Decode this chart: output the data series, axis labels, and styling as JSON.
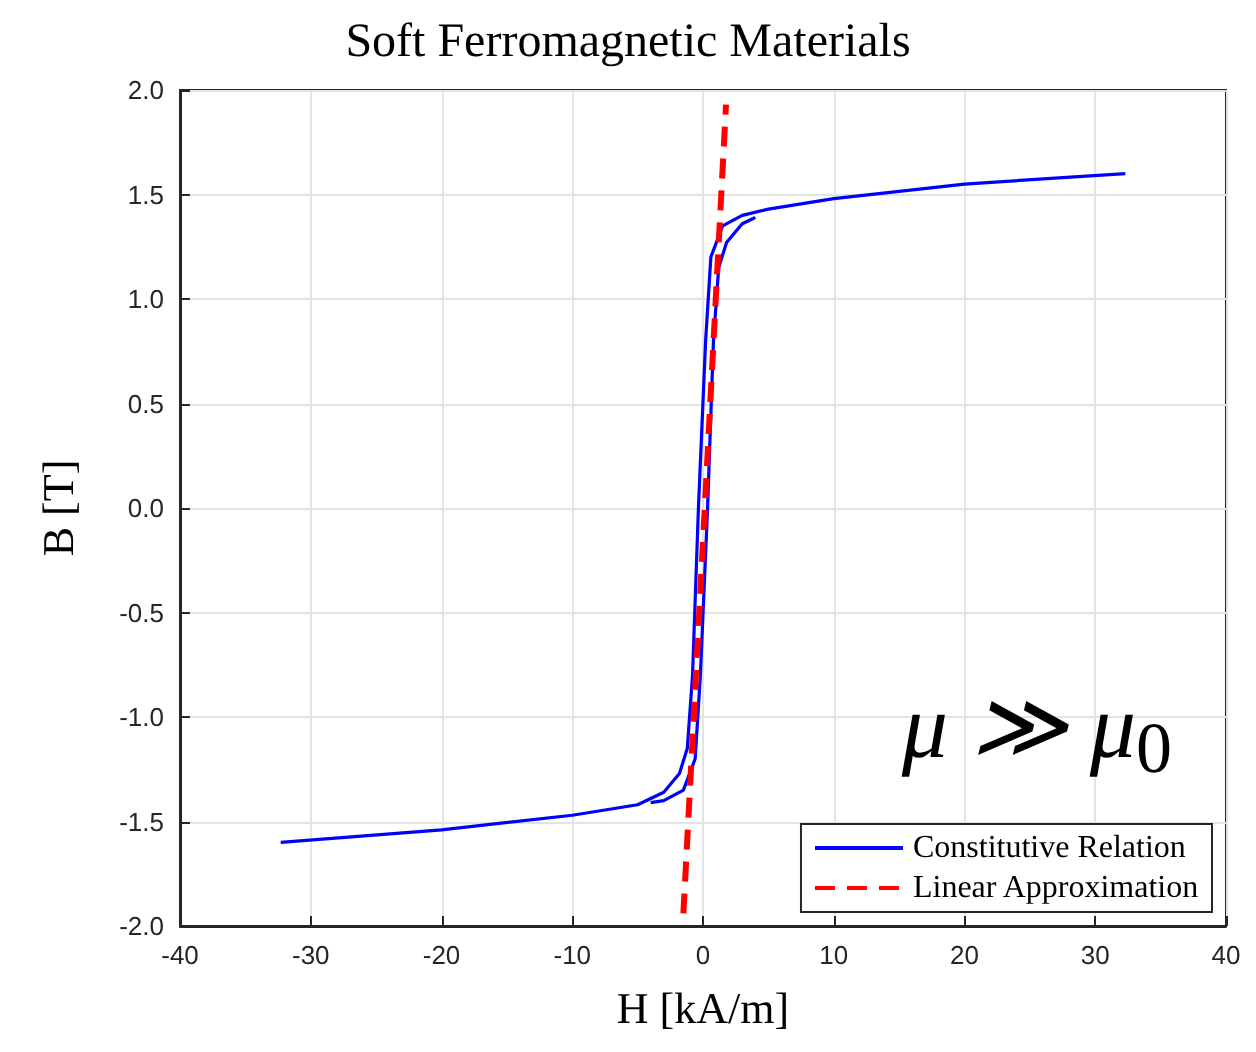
{
  "chart_data": {
    "type": "line",
    "title": "Soft Ferromagnetic Materials",
    "xlabel": "H [kA/m]",
    "ylabel": "B [T]",
    "annotations": [
      "μ ≫ μ$_{0}$"
    ],
    "series": [
      {
        "name": "Constitutive Relation",
        "color": "#0000ff",
        "line_style": "solid",
        "x": [
          32.3,
          20,
          10,
          5,
          3,
          1.5,
          0.6,
          0.2,
          -0.35,
          -0.8,
          -1.2,
          -1.8,
          -3,
          -5,
          -10,
          -20,
          -32.3
        ],
        "values": [
          1.6,
          1.55,
          1.48,
          1.43,
          1.4,
          1.35,
          1.2,
          0.8,
          0,
          -0.8,
          -1.15,
          -1.27,
          -1.36,
          -1.42,
          -1.47,
          -1.54,
          -1.6
        ]
      },
      {
        "color": "#0000ff",
        "line_style": "solid",
        "x": [
          -4,
          -3,
          -1.5,
          -0.6,
          -0.2,
          0.35,
          0.8,
          1.2,
          1.8,
          3,
          4
        ],
        "values": [
          -1.41,
          -1.4,
          -1.35,
          -1.2,
          -0.8,
          0,
          0.8,
          1.15,
          1.27,
          1.36,
          1.39
        ]
      },
      {
        "name": "Linear Approximation",
        "color": "#ff0000",
        "line_style": "dashed",
        "x": [
          -1.5,
          1.76
        ],
        "values": [
          -1.94,
          1.93
        ]
      }
    ],
    "xlim": [
      -40,
      40
    ],
    "xticks": [
      -40,
      -30,
      -20,
      -10,
      0,
      10,
      20,
      30,
      40
    ],
    "ylim": [
      -2,
      2
    ],
    "yticks": [
      {
        "value": -2,
        "label": "-2.0"
      },
      {
        "value": -1.5,
        "label": "-1.5"
      },
      {
        "value": -1,
        "label": "-1.0"
      },
      {
        "value": -0.5,
        "label": "-0.5"
      },
      {
        "value": 0,
        "label": "0.0"
      },
      {
        "value": 0.5,
        "label": "0.5"
      },
      {
        "value": 1,
        "label": "1.0"
      },
      {
        "value": 1.5,
        "label": "1.5"
      },
      {
        "value": 2,
        "label": "2.0"
      }
    ],
    "grid": true,
    "legend": "bottom right",
    "marker": "none"
  }
}
